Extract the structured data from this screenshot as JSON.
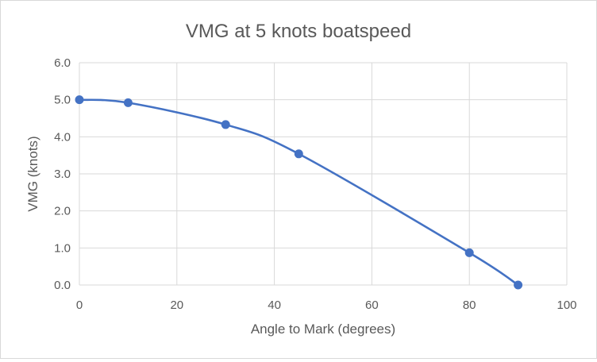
{
  "chart_data": {
    "type": "scatter",
    "title": "VMG at 5 knots boatspeed",
    "xlabel": "Angle to Mark (degrees)",
    "ylabel": "VMG (knots)",
    "xlim": [
      0,
      100
    ],
    "ylim": [
      0,
      6
    ],
    "x_ticks": [
      0,
      20,
      40,
      60,
      80,
      100
    ],
    "y_ticks": [
      "0.0",
      "1.0",
      "2.0",
      "3.0",
      "4.0",
      "5.0",
      "6.0"
    ],
    "grid": true,
    "legend": "none",
    "smooth_line": true,
    "series": [
      {
        "color": "#4472c4",
        "x": [
          0,
          10,
          30,
          45,
          80,
          90
        ],
        "y": [
          5.0,
          4.92,
          4.33,
          3.54,
          0.87,
          0.0
        ]
      }
    ]
  }
}
